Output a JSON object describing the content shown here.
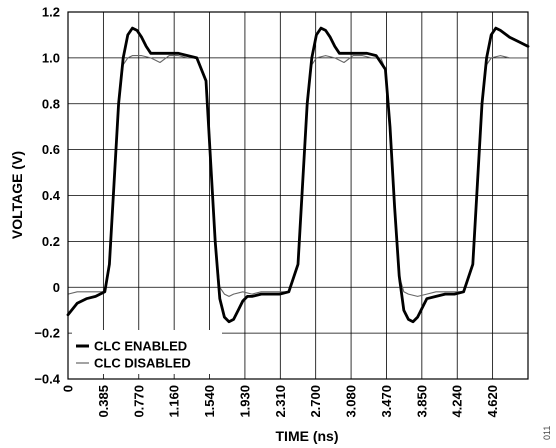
{
  "chart_data": {
    "type": "line",
    "title": "",
    "xlabel": "TIME (ns)",
    "ylabel": "VOLTAGE (V)",
    "xlim": [
      0,
      5.0
    ],
    "ylim": [
      -0.4,
      1.2
    ],
    "xticks": [
      "0",
      "0.385",
      "0.770",
      "1.160",
      "1.540",
      "1.930",
      "2.310",
      "2.700",
      "3.080",
      "3.470",
      "3.850",
      "4.240",
      "4.620"
    ],
    "yticks": [
      "1.2",
      "1.0",
      "0.8",
      "0.6",
      "0.4",
      "0.2",
      "0",
      "−0.2",
      "−0.4"
    ],
    "grid": true,
    "legend_position": "bottom-left",
    "series": [
      {
        "name": "CLC ENABLED",
        "color": "#000000",
        "style": "thick",
        "x": [
          0,
          0.1,
          0.2,
          0.3,
          0.4,
          0.45,
          0.5,
          0.55,
          0.6,
          0.65,
          0.7,
          0.75,
          0.8,
          0.85,
          0.9,
          1.0,
          1.1,
          1.2,
          1.3,
          1.4,
          1.5,
          1.55,
          1.6,
          1.65,
          1.7,
          1.75,
          1.8,
          1.85,
          1.9,
          1.95,
          2.0,
          2.1,
          2.2,
          2.3,
          2.4,
          2.5,
          2.55,
          2.6,
          2.65,
          2.7,
          2.75,
          2.8,
          2.85,
          2.9,
          2.95,
          3.05,
          3.15,
          3.25,
          3.35,
          3.45,
          3.5,
          3.55,
          3.6,
          3.65,
          3.7,
          3.75,
          3.8,
          3.85,
          3.9,
          4.0,
          4.1,
          4.2,
          4.3,
          4.4,
          4.45,
          4.5,
          4.55,
          4.6,
          4.65,
          4.7,
          4.8,
          4.9,
          5.0
        ],
        "values": [
          -0.12,
          -0.07,
          -0.05,
          -0.04,
          -0.02,
          0.1,
          0.45,
          0.8,
          1.0,
          1.1,
          1.13,
          1.12,
          1.09,
          1.05,
          1.02,
          1.02,
          1.02,
          1.02,
          1.01,
          1.0,
          0.9,
          0.55,
          0.2,
          -0.05,
          -0.13,
          -0.15,
          -0.14,
          -0.1,
          -0.06,
          -0.04,
          -0.04,
          -0.03,
          -0.03,
          -0.03,
          -0.02,
          0.1,
          0.45,
          0.8,
          1.0,
          1.1,
          1.13,
          1.12,
          1.09,
          1.05,
          1.02,
          1.02,
          1.02,
          1.02,
          1.01,
          0.95,
          0.7,
          0.35,
          0.05,
          -0.1,
          -0.14,
          -0.15,
          -0.13,
          -0.09,
          -0.05,
          -0.04,
          -0.03,
          -0.03,
          -0.02,
          0.1,
          0.45,
          0.8,
          1.0,
          1.1,
          1.13,
          1.12,
          1.09,
          1.07,
          1.05
        ]
      },
      {
        "name": "CLC DISABLED",
        "color": "#666666",
        "style": "thin",
        "x": [
          0,
          0.1,
          0.2,
          0.3,
          0.4,
          0.45,
          0.5,
          0.55,
          0.6,
          0.65,
          0.7,
          0.8,
          0.9,
          1.0,
          1.1,
          1.2,
          1.3,
          1.4,
          1.5,
          1.55,
          1.6,
          1.65,
          1.7,
          1.75,
          1.8,
          1.9,
          2.0,
          2.1,
          2.2,
          2.3,
          2.4,
          2.5,
          2.55,
          2.6,
          2.65,
          2.7,
          2.8,
          2.9,
          3.0,
          3.1,
          3.2,
          3.3,
          3.4,
          3.45,
          3.5,
          3.55,
          3.6,
          3.65,
          3.7,
          3.8,
          3.9,
          4.0,
          4.1,
          4.2,
          4.3,
          4.4,
          4.45,
          4.5,
          4.55,
          4.6,
          4.7,
          4.8,
          4.9,
          5.0
        ],
        "values": [
          -0.03,
          -0.02,
          -0.02,
          -0.02,
          -0.02,
          0.1,
          0.45,
          0.8,
          0.97,
          1.0,
          1.01,
          1.01,
          1.0,
          0.98,
          1.01,
          1.01,
          1.0,
          1.0,
          0.9,
          0.55,
          0.2,
          0.0,
          -0.03,
          -0.04,
          -0.03,
          -0.02,
          -0.03,
          -0.02,
          -0.02,
          -0.02,
          -0.02,
          0.1,
          0.45,
          0.8,
          0.97,
          1.0,
          1.01,
          1.0,
          0.98,
          1.01,
          1.01,
          1.0,
          1.0,
          0.95,
          0.7,
          0.35,
          0.05,
          -0.02,
          -0.03,
          -0.04,
          -0.03,
          -0.02,
          -0.02,
          -0.02,
          -0.02,
          0.1,
          0.45,
          0.8,
          0.97,
          1.0,
          1.01,
          1.0,
          1.0,
          1.0
        ]
      }
    ],
    "figure_id": "011"
  }
}
